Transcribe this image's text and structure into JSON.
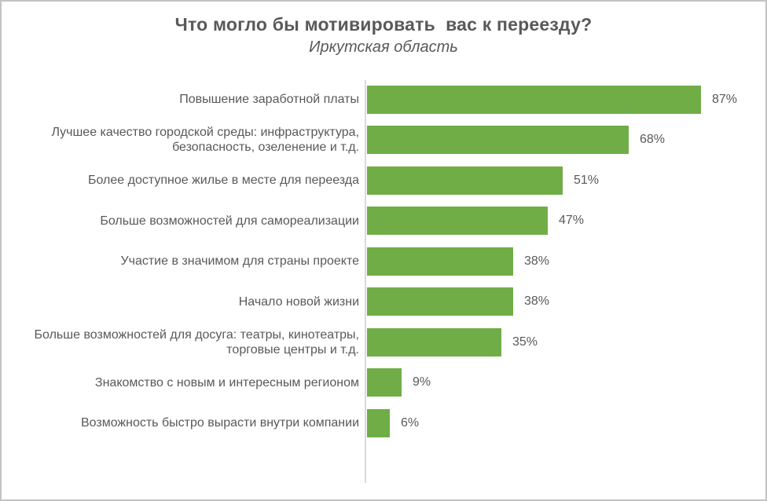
{
  "title": "Что могло бы мотивировать  вас к переезду?",
  "subtitle": "Иркутская область",
  "colors": {
    "bar": "#70AD47",
    "axis": "#D9D9D9",
    "text": "#595959",
    "frame_border": "#C3C3C3"
  },
  "chart_data": {
    "type": "bar",
    "orientation": "horizontal",
    "title": "Что могло бы мотивировать  вас к переезду?",
    "subtitle": "Иркутская область",
    "categories": [
      "Повышение заработной платы",
      "Лучшее качество городской среды: инфраструктура,\nбезопасность, озеленение и т.д.",
      "Более доступное жилье в месте для переезда",
      "Больше возможностей для самореализации",
      "Участие в значимом для страны проекте",
      "Начало новой жизни",
      "Больше возможностей для досуга: театры, кинотеатры,\nторговые центры и т.д.",
      "Знакомство с новым и интересным регионом",
      "Возможность быстро вырасти внутри компании"
    ],
    "values": [
      87,
      68,
      51,
      47,
      38,
      38,
      35,
      9,
      6
    ],
    "value_suffix": "%",
    "data_labels": [
      "87%",
      "68%",
      "51%",
      "47%",
      "38%",
      "38%",
      "35%",
      "9%",
      "6%"
    ],
    "xlim": [
      0,
      100
    ],
    "grid": false,
    "legend": false
  }
}
